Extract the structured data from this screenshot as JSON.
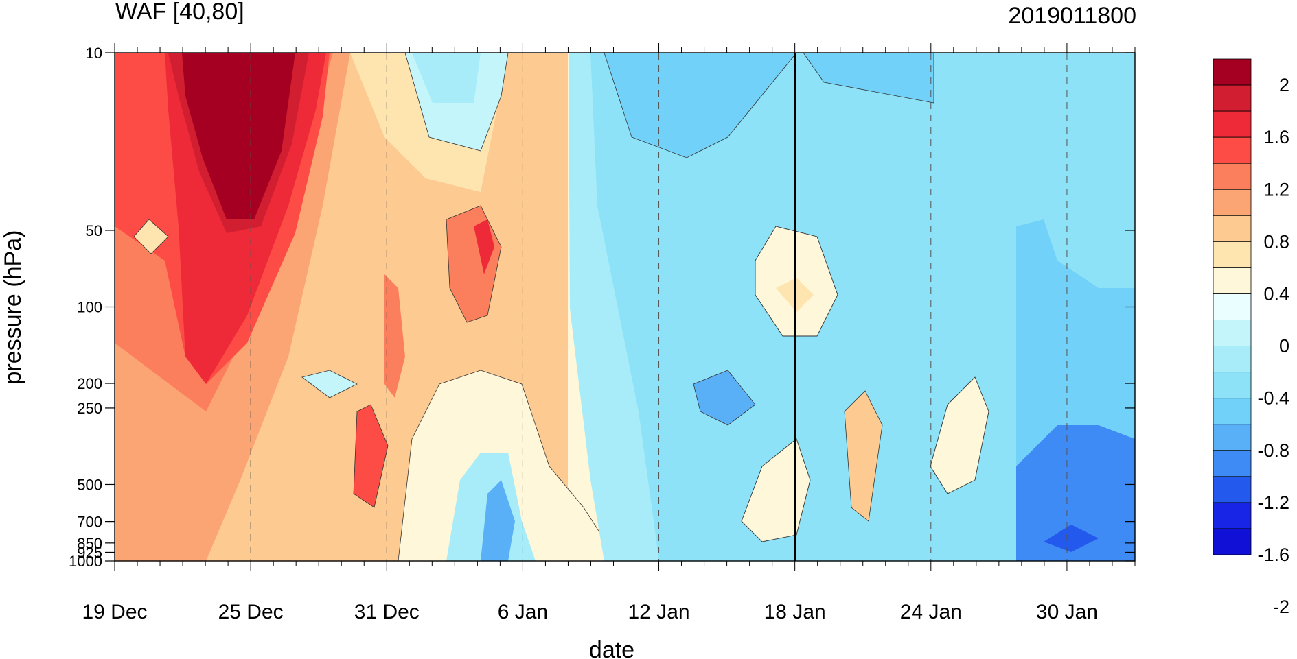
{
  "chart_data": {
    "type": "heatmap",
    "title_left": "WAF [40,80]",
    "title_right": "2019011800",
    "xlabel": "date",
    "ylabel": "pressure (hPa)",
    "x_major_ticks": [
      "19 Dec",
      "25 Dec",
      "31 Dec",
      "6 Jan",
      "12 Jan",
      "18 Jan",
      "24 Jan",
      "30 Jan"
    ],
    "x_range_days": [
      0,
      45
    ],
    "y_ticks": [
      "10",
      "50",
      "100",
      "200",
      "250",
      "500",
      "700",
      "850",
      "925",
      "1000"
    ],
    "y_levels_hPa": [
      10,
      50,
      100,
      200,
      250,
      500,
      700,
      850,
      925,
      1000
    ],
    "y_scale": "log",
    "marker_date": "18 Jan",
    "dashed_verticals": [
      "25 Dec",
      "31 Dec",
      "6 Jan",
      "12 Jan",
      "24 Jan",
      "30 Jan"
    ],
    "colorbar": {
      "labels": [
        "2",
        "1.6",
        "1.2",
        "0.8",
        "0.4",
        "0",
        "-0.4",
        "-0.8",
        "-1.2",
        "-1.6",
        "-2"
      ],
      "colors": [
        "#a50021",
        "#d11e30",
        "#ee2a38",
        "#fc4c45",
        "#fb7f5c",
        "#fca574",
        "#fdcb91",
        "#fee5b0",
        "#fff7da",
        "#eafeff",
        "#c3f5fb",
        "#a7ecf8",
        "#8de2f7",
        "#72d1f9",
        "#59b0f7",
        "#3f8bf5",
        "#2459ee",
        "#1824e6",
        "#1010d6"
      ]
    },
    "colors": {
      "strong_pos": "#a50021",
      "pos": "#fc4c45",
      "weak_pos": "#fee5b0",
      "zero": "#fff7da",
      "weak_neg": "#c3f5fb",
      "neg": "#72d1f9",
      "strong_neg": "#2459ee"
    }
  }
}
